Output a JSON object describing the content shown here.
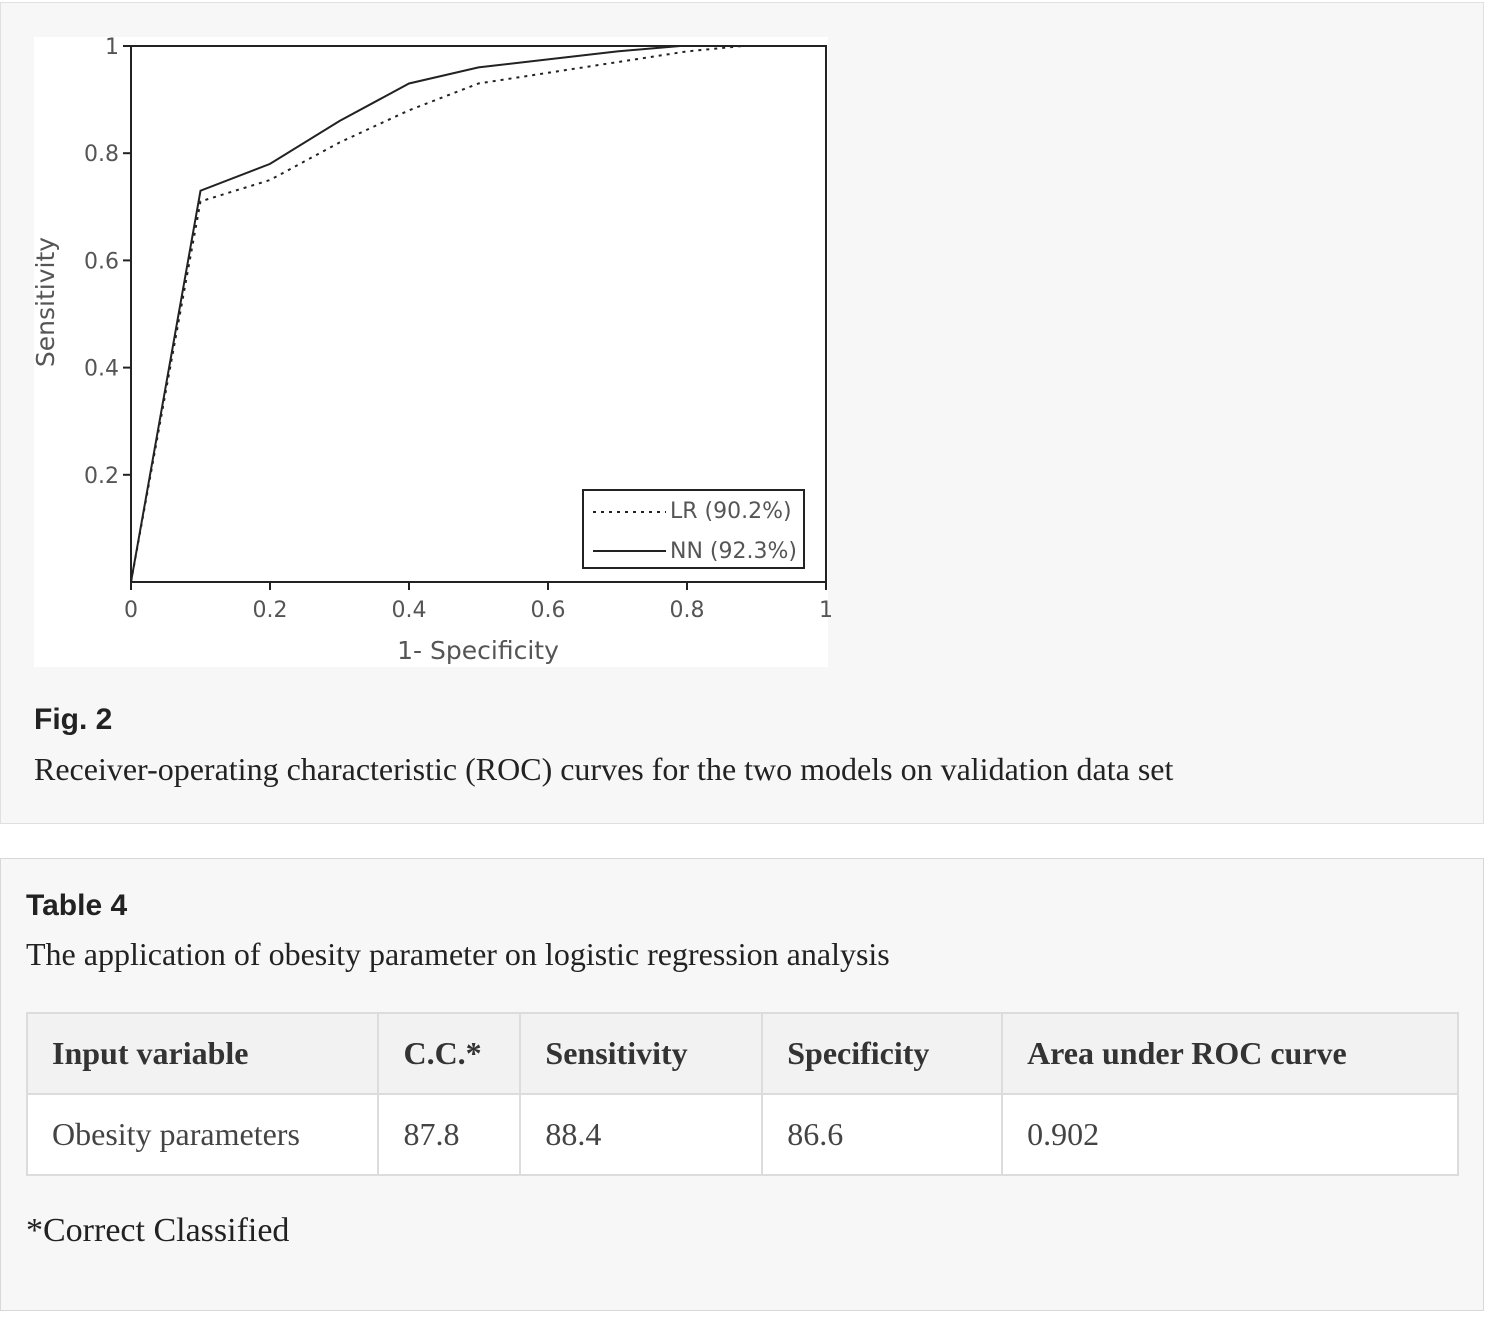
{
  "figure": {
    "label": "Fig. 2",
    "caption": "Receiver-operating characteristic (ROC) curves for the two models on validation data set"
  },
  "chart_data": {
    "type": "line",
    "title": "",
    "xlabel": "1- Specificity",
    "ylabel": "Sensitivity",
    "xlim": [
      0,
      1
    ],
    "ylim": [
      0,
      1
    ],
    "xticks": [
      "0",
      "0.2",
      "0.4",
      "0.6",
      "0.8",
      "1"
    ],
    "yticks": [
      "0.2",
      "0.4",
      "0.6",
      "0.8",
      "1"
    ],
    "xtick_values": [
      0,
      0.2,
      0.4,
      0.6,
      0.8,
      1
    ],
    "ytick_values": [
      0.2,
      0.4,
      0.6,
      0.8,
      1
    ],
    "grid": false,
    "legend_position": "bottom-right",
    "series": [
      {
        "name": "LR (90.2%)",
        "style": "dotted",
        "x": [
          0,
          0.1,
          0.2,
          0.3,
          0.4,
          0.5,
          0.6,
          0.7,
          0.8,
          0.88
        ],
        "y": [
          0,
          0.71,
          0.75,
          0.82,
          0.88,
          0.93,
          0.95,
          0.97,
          0.99,
          1.0
        ]
      },
      {
        "name": "NN (92.3%)",
        "style": "solid",
        "x": [
          0,
          0.1,
          0.2,
          0.3,
          0.4,
          0.5,
          0.6,
          0.7,
          0.79
        ],
        "y": [
          0,
          0.73,
          0.78,
          0.86,
          0.93,
          0.96,
          0.975,
          0.99,
          1.0
        ]
      }
    ]
  },
  "table": {
    "label": "Table 4",
    "caption": "The application of obesity parameter on logistic regression analysis",
    "headers": [
      "Input variable",
      "C.C.*",
      "Sensitivity",
      "Specificity",
      "Area under ROC curve"
    ],
    "rows": [
      [
        "Obesity parameters",
        "87.8",
        "88.4",
        "86.6",
        "0.902"
      ]
    ],
    "footnote": "*Correct Classified"
  }
}
